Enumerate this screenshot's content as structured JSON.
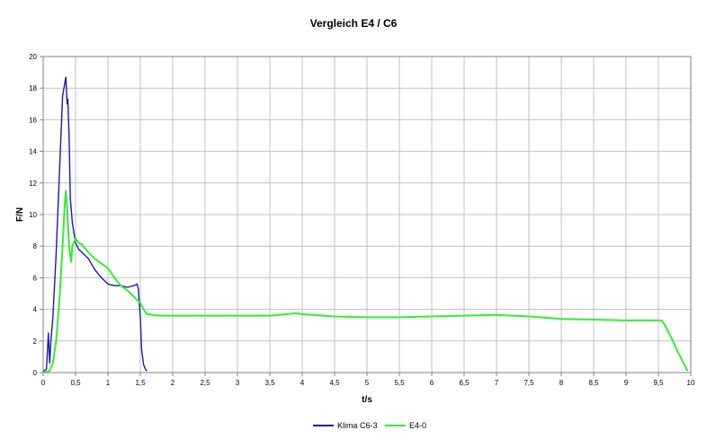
{
  "chart_data": {
    "type": "line",
    "title": "Vergleich E4 / C6",
    "xlabel": "t/s",
    "ylabel": "F/N",
    "xlim": [
      0,
      10
    ],
    "ylim": [
      0,
      20
    ],
    "x_ticks": [
      "0",
      "0,5",
      "1",
      "1,5",
      "2",
      "2,5",
      "3",
      "3,5",
      "4",
      "4,5",
      "5",
      "5,5",
      "6",
      "6,5",
      "7",
      "7,5",
      "8",
      "8,5",
      "9",
      "9,5",
      "10"
    ],
    "y_ticks": [
      "0",
      "2",
      "4",
      "6",
      "8",
      "10",
      "12",
      "14",
      "16",
      "18",
      "20"
    ],
    "grid": true,
    "legend_position": "bottom-center",
    "series": [
      {
        "name": "Klima C6-3",
        "color": "#1a1aa8",
        "points": [
          [
            0.0,
            0.1
          ],
          [
            0.05,
            0.2
          ],
          [
            0.08,
            2.5
          ],
          [
            0.1,
            0.6
          ],
          [
            0.12,
            2.0
          ],
          [
            0.15,
            3.5
          ],
          [
            0.2,
            7.5
          ],
          [
            0.25,
            12.5
          ],
          [
            0.3,
            17.5
          ],
          [
            0.35,
            18.7
          ],
          [
            0.37,
            17.0
          ],
          [
            0.38,
            17.3
          ],
          [
            0.4,
            15.0
          ],
          [
            0.42,
            11.0
          ],
          [
            0.45,
            9.5
          ],
          [
            0.5,
            8.2
          ],
          [
            0.55,
            7.8
          ],
          [
            0.6,
            7.6
          ],
          [
            0.7,
            7.2
          ],
          [
            0.8,
            6.5
          ],
          [
            0.9,
            6.0
          ],
          [
            1.0,
            5.6
          ],
          [
            1.1,
            5.5
          ],
          [
            1.2,
            5.5
          ],
          [
            1.3,
            5.4
          ],
          [
            1.4,
            5.5
          ],
          [
            1.45,
            5.6
          ],
          [
            1.47,
            5.3
          ],
          [
            1.5,
            3.5
          ],
          [
            1.52,
            1.5
          ],
          [
            1.55,
            0.5
          ],
          [
            1.58,
            0.2
          ],
          [
            1.6,
            0.1
          ]
        ]
      },
      {
        "name": "E4-0",
        "color": "#33ee33",
        "points": [
          [
            0.0,
            0.0
          ],
          [
            0.1,
            0.1
          ],
          [
            0.15,
            0.6
          ],
          [
            0.2,
            2.0
          ],
          [
            0.25,
            4.5
          ],
          [
            0.3,
            8.0
          ],
          [
            0.33,
            10.5
          ],
          [
            0.35,
            11.5
          ],
          [
            0.37,
            10.5
          ],
          [
            0.4,
            8.0
          ],
          [
            0.43,
            7.0
          ],
          [
            0.45,
            8.0
          ],
          [
            0.5,
            8.5
          ],
          [
            0.55,
            8.2
          ],
          [
            0.6,
            8.1
          ],
          [
            0.7,
            7.6
          ],
          [
            0.8,
            7.2
          ],
          [
            0.9,
            6.9
          ],
          [
            1.0,
            6.6
          ],
          [
            1.1,
            6.0
          ],
          [
            1.2,
            5.5
          ],
          [
            1.3,
            5.2
          ],
          [
            1.4,
            4.8
          ],
          [
            1.5,
            4.4
          ],
          [
            1.55,
            4.0
          ],
          [
            1.6,
            3.7
          ],
          [
            1.8,
            3.6
          ],
          [
            2.0,
            3.6
          ],
          [
            2.5,
            3.6
          ],
          [
            3.0,
            3.6
          ],
          [
            3.5,
            3.6
          ],
          [
            3.9,
            3.75
          ],
          [
            4.0,
            3.7
          ],
          [
            4.5,
            3.55
          ],
          [
            5.0,
            3.5
          ],
          [
            5.5,
            3.5
          ],
          [
            6.0,
            3.55
          ],
          [
            6.5,
            3.6
          ],
          [
            7.0,
            3.65
          ],
          [
            7.5,
            3.55
          ],
          [
            8.0,
            3.4
          ],
          [
            8.5,
            3.35
          ],
          [
            9.0,
            3.3
          ],
          [
            9.5,
            3.3
          ],
          [
            9.55,
            3.3
          ],
          [
            9.6,
            3.0
          ],
          [
            9.7,
            2.2
          ],
          [
            9.8,
            1.3
          ],
          [
            9.9,
            0.5
          ],
          [
            9.95,
            0.1
          ]
        ]
      }
    ]
  }
}
